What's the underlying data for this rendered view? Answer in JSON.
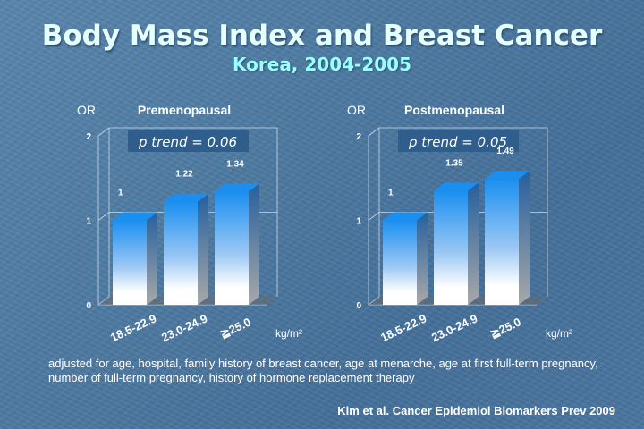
{
  "title": "Body Mass Index and Breast Cancer",
  "subtitle": "Korea, 2004-2005",
  "chart_data": [
    {
      "type": "bar",
      "title": "Premenopausal",
      "ylabel": "OR",
      "xlabel": "kg/m²",
      "ylim": [
        0,
        2
      ],
      "yticks": [
        "0",
        "1",
        "2"
      ],
      "categories": [
        "18.5-22.9",
        "23.0-24.9",
        "≧25.0"
      ],
      "values": [
        1,
        1.22,
        1.34
      ],
      "value_labels": [
        "1",
        "1.22",
        "1.34"
      ],
      "annotation": "p trend = 0.06"
    },
    {
      "type": "bar",
      "title": "Postmenopausal",
      "ylabel": "OR",
      "xlabel": "kg/m²",
      "ylim": [
        0,
        2
      ],
      "yticks": [
        "0",
        "1",
        "2"
      ],
      "categories": [
        "18.5-22.9",
        "23.0-24.9",
        "≧25.0"
      ],
      "values": [
        1,
        1.35,
        1.49
      ],
      "value_labels": [
        "1",
        "1.35",
        "1.49"
      ],
      "annotation": "p trend = 0.05"
    }
  ],
  "footnote": "adjusted for age, hospital, family history of breast cancer, age at menarche, age at first full-term pregnancy, number of full-term pregnancy, history of hormone replacement therapy",
  "citation": "Kim et al. Cancer Epidemiol Biomarkers Prev 2009",
  "colors": {
    "bar_top": "#1a8ff0",
    "bar_side": "#2a5f9a",
    "box": "#2f5d8c"
  }
}
